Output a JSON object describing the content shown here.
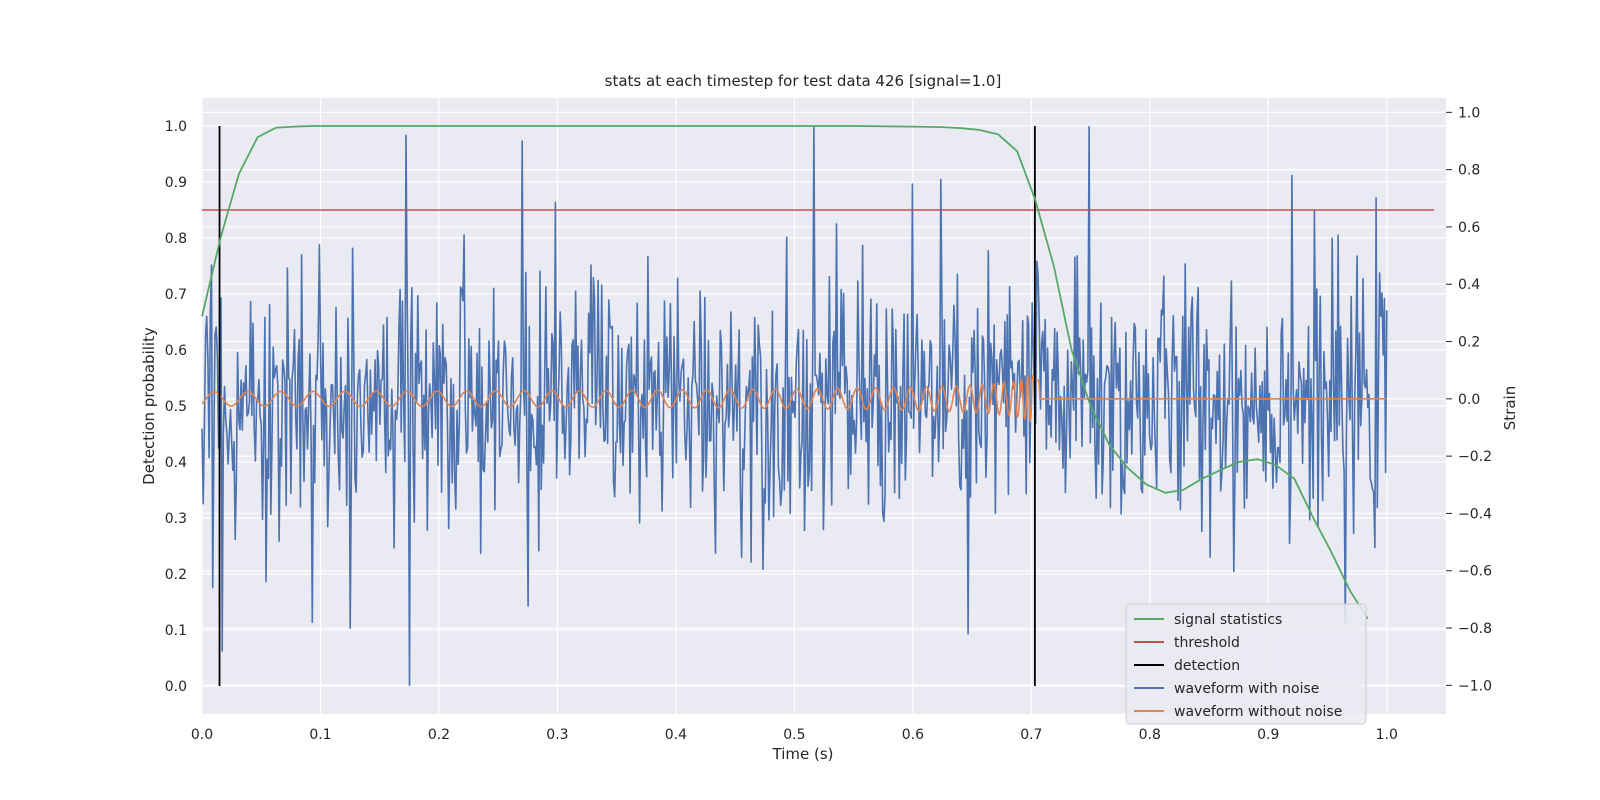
{
  "chart_data": {
    "type": "line",
    "title": "stats at each timestep for test data 426 [signal=1.0]",
    "xlabel": "Time (s)",
    "ylabel": "Detection probability",
    "y2label": "Strain",
    "xlim": [
      0.0,
      1.05
    ],
    "ylim": [
      -0.05,
      1.05
    ],
    "y2lim": [
      -1.1,
      1.05
    ],
    "xticks": [
      "0.0",
      "0.1",
      "0.2",
      "0.3",
      "0.4",
      "0.5",
      "0.6",
      "0.7",
      "0.8",
      "0.9",
      "1.0"
    ],
    "yticks": [
      "0.0",
      "0.1",
      "0.2",
      "0.3",
      "0.4",
      "0.5",
      "0.6",
      "0.7",
      "0.8",
      "0.9",
      "1.0"
    ],
    "y2ticks": [
      "−1.0",
      "−0.8",
      "−0.6",
      "−0.4",
      "−0.2",
      "0.0",
      "0.2",
      "0.4",
      "0.6",
      "0.8",
      "1.0"
    ],
    "grid": true,
    "legend_position": "lower-right",
    "colors": {
      "signal": "#55a868",
      "threshold": "#c44e52",
      "detection": "#000000",
      "noisy": "#4c72b0",
      "clean": "#dd8452",
      "background": "#eaeaf2",
      "grid": "#ffffff"
    },
    "legend": [
      {
        "label": "signal statistics",
        "key": "signal"
      },
      {
        "label": "threshold",
        "key": "threshold"
      },
      {
        "label": "detection",
        "key": "detection"
      },
      {
        "label": "waveform with noise",
        "key": "noisy"
      },
      {
        "label": "waveform without noise",
        "key": "clean"
      }
    ],
    "threshold": {
      "value": 0.85,
      "x": [
        0.0,
        1.04
      ]
    },
    "detections": [
      0.0148,
      0.703
    ],
    "signal_statistics": {
      "x": [
        0.0,
        0.0156,
        0.0312,
        0.0469,
        0.0625,
        0.078,
        0.094,
        0.11,
        0.2,
        0.3,
        0.4,
        0.5,
        0.55,
        0.6,
        0.625,
        0.641,
        0.656,
        0.672,
        0.688,
        0.703,
        0.719,
        0.734,
        0.75,
        0.766,
        0.781,
        0.797,
        0.813,
        0.828,
        0.844,
        0.859,
        0.875,
        0.891,
        0.906,
        0.922,
        0.938,
        0.953,
        0.969,
        0.984
      ],
      "y": [
        0.66,
        0.8,
        0.915,
        0.98,
        0.997,
        0.999,
        1.0,
        1.0,
        1.0,
        1.0,
        1.0,
        1.0,
        1.0,
        0.999,
        0.998,
        0.996,
        0.993,
        0.985,
        0.955,
        0.87,
        0.75,
        0.6,
        0.5,
        0.43,
        0.39,
        0.36,
        0.345,
        0.35,
        0.37,
        0.385,
        0.4,
        0.405,
        0.395,
        0.37,
        0.3,
        0.24,
        0.17,
        0.12
      ]
    },
    "waveform_with_noise": {
      "x_range": [
        0.0,
        1.0
      ],
      "n_points": 1000,
      "spread": 0.22,
      "peaks": [
        {
          "x": 0.017,
          "y": -0.88
        },
        {
          "x": 0.172,
          "y": 0.92
        },
        {
          "x": 0.175,
          "y": -1.0
        },
        {
          "x": 0.27,
          "y": 0.9
        },
        {
          "x": 0.517,
          "y": 0.95
        },
        {
          "x": 0.647,
          "y": -0.82
        },
        {
          "x": 0.749,
          "y": 0.95
        },
        {
          "x": 0.705,
          "y": 0.48
        },
        {
          "x": 0.92,
          "y": 0.78
        },
        {
          "x": 0.965,
          "y": -0.78
        },
        {
          "x": 0.093,
          "y": -0.78
        },
        {
          "x": 0.125,
          "y": -0.8
        },
        {
          "x": 0.6,
          "y": 0.75
        }
      ]
    },
    "waveform_without_noise": {
      "x_range": [
        0.0,
        1.0
      ],
      "n_points": 1200,
      "merger_time": 0.703,
      "amplitude_start": 0.025,
      "amplitude_peak": 0.13,
      "freq_start": 35
    }
  }
}
